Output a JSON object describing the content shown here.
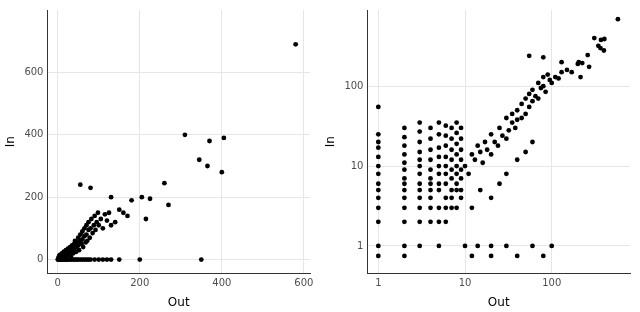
{
  "chart_data": [
    {
      "type": "scatter",
      "x_label": "Out",
      "y_label": "In",
      "color": "#000000",
      "marker": "circle",
      "grid": true,
      "xlim": [
        -25,
        615
      ],
      "ylim": [
        -45,
        800
      ],
      "xticks": [
        0,
        200,
        400,
        600
      ],
      "yticks": [
        0,
        200,
        400,
        600
      ],
      "x": [
        0,
        2,
        4,
        6,
        8,
        10,
        12,
        15,
        18,
        20,
        23,
        26,
        30,
        34,
        38,
        42,
        46,
        50,
        55,
        60,
        65,
        70,
        75,
        80,
        90,
        100,
        110,
        120,
        130,
        150,
        200,
        350,
        2,
        3,
        5,
        5,
        8,
        10,
        10,
        12,
        15,
        15,
        18,
        20,
        20,
        22,
        25,
        25,
        28,
        30,
        30,
        32,
        35,
        35,
        38,
        40,
        40,
        42,
        45,
        45,
        48,
        50,
        50,
        52,
        55,
        55,
        58,
        60,
        60,
        62,
        65,
        65,
        68,
        70,
        70,
        72,
        75,
        75,
        78,
        80,
        82,
        85,
        88,
        90,
        92,
        95,
        98,
        100,
        105,
        110,
        115,
        120,
        125,
        130,
        140,
        150,
        160,
        170,
        180,
        55,
        80,
        130,
        205,
        225,
        215,
        260,
        270,
        310,
        345,
        365,
        370,
        400,
        405,
        580
      ],
      "values": [
        0,
        0,
        0,
        0,
        0,
        0,
        0,
        0,
        0,
        0,
        0,
        0,
        0,
        0,
        0,
        0,
        0,
        0,
        0,
        0,
        0,
        0,
        0,
        0,
        0,
        0,
        0,
        0,
        0,
        0,
        0,
        0,
        5,
        10,
        3,
        15,
        8,
        20,
        5,
        12,
        25,
        8,
        15,
        30,
        10,
        20,
        35,
        15,
        25,
        40,
        20,
        10,
        45,
        30,
        20,
        50,
        35,
        60,
        40,
        25,
        55,
        70,
        45,
        30,
        60,
        80,
        50,
        65,
        90,
        40,
        75,
        100,
        55,
        80,
        110,
        60,
        95,
        120,
        70,
        100,
        130,
        85,
        110,
        140,
        95,
        120,
        150,
        110,
        130,
        100,
        145,
        125,
        150,
        110,
        120,
        160,
        150,
        140,
        190,
        240,
        230,
        200,
        200,
        195,
        130,
        245,
        175,
        400,
        320,
        300,
        380,
        280,
        390,
        690
      ]
    },
    {
      "type": "scatter",
      "x_label": "Out",
      "y_label": "In",
      "color": "#000000",
      "marker": "circle",
      "grid": true,
      "log": true,
      "xlim": [
        0.75,
        800
      ],
      "ylim": [
        0.45,
        900
      ],
      "xticks": [
        1,
        10,
        100
      ],
      "yticks": [
        1,
        10,
        100
      ],
      "x": [
        1,
        1,
        1,
        1,
        1,
        1,
        1,
        1,
        1,
        1,
        1,
        1,
        1,
        1,
        2,
        2,
        2,
        2,
        2,
        2,
        2,
        2,
        2,
        2,
        2,
        2,
        2,
        2,
        3,
        3,
        3,
        3,
        3,
        3,
        3,
        3,
        3,
        3,
        3,
        3,
        3,
        4,
        4,
        4,
        4,
        4,
        4,
        4,
        4,
        4,
        4,
        4,
        5,
        5,
        5,
        5,
        5,
        5,
        5,
        5,
        5,
        5,
        5,
        6,
        6,
        6,
        6,
        6,
        6,
        6,
        6,
        6,
        6,
        7,
        7,
        7,
        7,
        7,
        7,
        7,
        7,
        7,
        8,
        8,
        8,
        8,
        8,
        8,
        8,
        8,
        8,
        9,
        9,
        9,
        9,
        9,
        9,
        9,
        9,
        10,
        14,
        20,
        30,
        60,
        100,
        12,
        20,
        40,
        80,
        10,
        11,
        12,
        13,
        14,
        15,
        16,
        17,
        18,
        20,
        20,
        22,
        24,
        25,
        27,
        30,
        30,
        32,
        35,
        35,
        38,
        40,
        40,
        45,
        45,
        50,
        50,
        55,
        55,
        60,
        60,
        65,
        70,
        70,
        75,
        80,
        80,
        85,
        90,
        95,
        100,
        110,
        120,
        130,
        150,
        170,
        200,
        12,
        15,
        20,
        25,
        30,
        40,
        50,
        60,
        55,
        80,
        130,
        205,
        225,
        215,
        260,
        270,
        310,
        345,
        365,
        370,
        400,
        405,
        580
      ],
      "values": [
        1,
        2,
        3,
        4,
        5,
        6,
        8,
        10,
        13,
        17,
        20,
        25,
        55,
        0.75,
        1,
        2,
        3,
        4,
        5,
        6,
        7,
        9,
        11,
        14,
        18,
        23,
        30,
        0.75,
        1,
        2,
        3,
        4,
        5,
        6,
        8,
        10,
        12,
        15,
        20,
        27,
        35,
        2,
        3,
        4,
        5,
        6,
        7,
        9,
        12,
        16,
        22,
        30,
        1,
        2,
        3,
        5,
        6,
        8,
        10,
        13,
        17,
        25,
        35,
        2,
        3,
        4,
        6,
        8,
        10,
        13,
        18,
        24,
        32,
        3,
        4,
        5,
        7,
        9,
        12,
        16,
        22,
        30,
        3,
        5,
        6,
        8,
        10,
        14,
        19,
        26,
        35,
        4,
        5,
        7,
        9,
        12,
        16,
        22,
        30,
        1,
        1,
        1,
        1,
        1,
        1,
        0.75,
        0.75,
        0.75,
        0.75,
        10,
        8,
        14,
        12,
        18,
        15,
        11,
        20,
        16,
        25,
        14,
        20,
        18,
        30,
        24,
        22,
        40,
        28,
        35,
        45,
        30,
        50,
        38,
        40,
        60,
        45,
        70,
        55,
        80,
        65,
        90,
        75,
        70,
        110,
        95,
        100,
        130,
        85,
        140,
        120,
        110,
        130,
        125,
        150,
        160,
        150,
        190,
        3,
        5,
        4,
        6,
        8,
        12,
        15,
        20,
        240,
        230,
        200,
        200,
        195,
        130,
        245,
        175,
        400,
        320,
        300,
        380,
        280,
        390,
        690
      ]
    }
  ]
}
